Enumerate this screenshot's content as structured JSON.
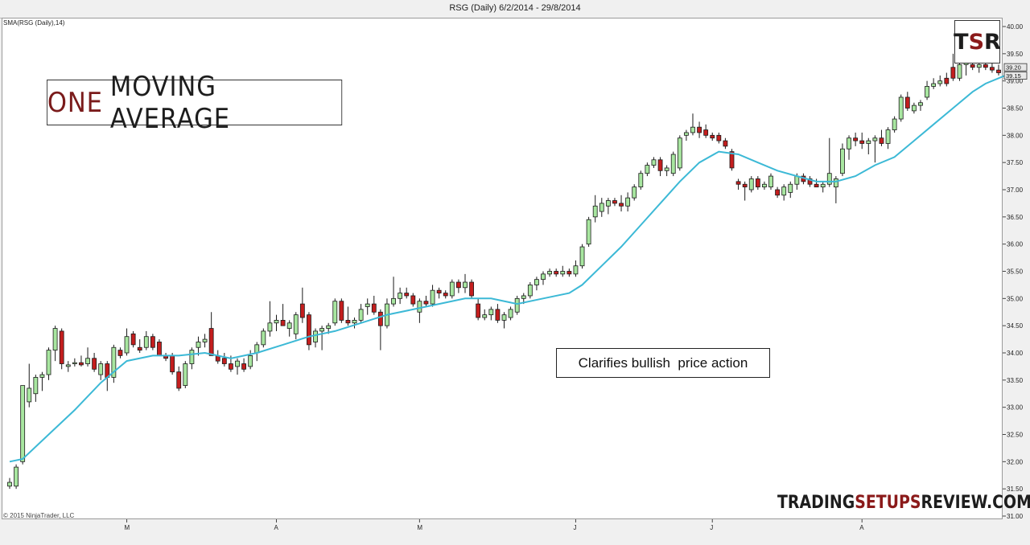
{
  "header": {
    "title": "RSG (Daily)  6/2/2014 - 29/8/2014"
  },
  "indicator_label": "SMA(RSG (Daily),14)",
  "copyright": "© 2015 NinjaTrader, LLC",
  "title_box": {
    "word1": "ONE",
    "word2": "MOVING AVERAGE"
  },
  "callout": "Clarifies bullish  price action",
  "logo": {
    "t": "T",
    "s": "S",
    "r": "R"
  },
  "watermark": {
    "part1": "TRADING",
    "part2": "SETUPS",
    "part3": "REVIEW.COM"
  },
  "colors": {
    "up": "#a8e6a0",
    "down": "#c41e1e",
    "sma": "#3cb9d6",
    "brand_red": "#8b1a1a"
  },
  "chart_data": {
    "type": "candlestick",
    "title": "RSG (Daily)  6/2/2014 - 29/8/2014",
    "ylim": [
      31.0,
      40.0
    ],
    "y_ticks": [
      "40.00",
      "39.50",
      "39.00",
      "38.50",
      "38.00",
      "37.50",
      "37.00",
      "36.50",
      "36.00",
      "35.50",
      "35.00",
      "34.50",
      "34.00",
      "33.50",
      "33.00",
      "32.50",
      "32.00",
      "31.50",
      "31.00"
    ],
    "x_month_labels": [
      {
        "label": "M",
        "index": 18
      },
      {
        "label": "A",
        "index": 41
      },
      {
        "label": "M",
        "index": 63
      },
      {
        "label": "J",
        "index": 87
      },
      {
        "label": "J",
        "index": 108
      },
      {
        "label": "A",
        "index": 131
      }
    ],
    "price_labels": [
      "39.20",
      "39.15"
    ],
    "candles": [
      {
        "o": 31.55,
        "h": 31.7,
        "l": 31.5,
        "c": 31.62
      },
      {
        "o": 31.55,
        "h": 31.95,
        "l": 31.5,
        "c": 31.9
      },
      {
        "o": 32.0,
        "h": 33.4,
        "l": 31.95,
        "c": 33.4
      },
      {
        "o": 33.1,
        "h": 33.8,
        "l": 33.0,
        "c": 33.35
      },
      {
        "o": 33.25,
        "h": 33.6,
        "l": 33.1,
        "c": 33.55
      },
      {
        "o": 33.55,
        "h": 33.65,
        "l": 33.3,
        "c": 33.6
      },
      {
        "o": 33.6,
        "h": 34.1,
        "l": 33.5,
        "c": 34.05
      },
      {
        "o": 34.05,
        "h": 34.5,
        "l": 33.85,
        "c": 34.45
      },
      {
        "o": 34.4,
        "h": 34.45,
        "l": 33.7,
        "c": 33.8
      },
      {
        "o": 33.75,
        "h": 33.85,
        "l": 33.65,
        "c": 33.78
      },
      {
        "o": 33.8,
        "h": 33.9,
        "l": 33.75,
        "c": 33.82
      },
      {
        "o": 33.82,
        "h": 33.95,
        "l": 33.75,
        "c": 33.78
      },
      {
        "o": 33.8,
        "h": 34.1,
        "l": 33.75,
        "c": 33.9
      },
      {
        "o": 33.9,
        "h": 34.0,
        "l": 33.65,
        "c": 33.7
      },
      {
        "o": 33.6,
        "h": 33.85,
        "l": 33.5,
        "c": 33.8
      },
      {
        "o": 33.8,
        "h": 33.85,
        "l": 33.3,
        "c": 33.55
      },
      {
        "o": 33.55,
        "h": 34.15,
        "l": 33.45,
        "c": 34.1
      },
      {
        "o": 34.05,
        "h": 34.1,
        "l": 33.9,
        "c": 33.95
      },
      {
        "o": 34.0,
        "h": 34.45,
        "l": 33.95,
        "c": 34.3
      },
      {
        "o": 34.35,
        "h": 34.4,
        "l": 34.1,
        "c": 34.15
      },
      {
        "o": 34.1,
        "h": 34.25,
        "l": 34.0,
        "c": 34.05
      },
      {
        "o": 34.1,
        "h": 34.4,
        "l": 34.05,
        "c": 34.3
      },
      {
        "o": 34.3,
        "h": 34.35,
        "l": 34.05,
        "c": 34.1
      },
      {
        "o": 34.2,
        "h": 34.25,
        "l": 34.0,
        "c": 33.95
      },
      {
        "o": 33.95,
        "h": 34.0,
        "l": 33.85,
        "c": 33.9
      },
      {
        "o": 33.95,
        "h": 34.0,
        "l": 33.6,
        "c": 33.65
      },
      {
        "o": 33.65,
        "h": 33.75,
        "l": 33.3,
        "c": 33.35
      },
      {
        "o": 33.4,
        "h": 33.85,
        "l": 33.35,
        "c": 33.8
      },
      {
        "o": 33.8,
        "h": 34.1,
        "l": 33.7,
        "c": 34.05
      },
      {
        "o": 34.1,
        "h": 34.3,
        "l": 33.95,
        "c": 34.2
      },
      {
        "o": 34.2,
        "h": 34.35,
        "l": 34.1,
        "c": 34.25
      },
      {
        "o": 34.45,
        "h": 34.75,
        "l": 33.95,
        "c": 33.95
      },
      {
        "o": 33.95,
        "h": 34.05,
        "l": 33.8,
        "c": 33.85
      },
      {
        "o": 33.9,
        "h": 34.0,
        "l": 33.75,
        "c": 33.8
      },
      {
        "o": 33.8,
        "h": 33.95,
        "l": 33.65,
        "c": 33.7
      },
      {
        "o": 33.75,
        "h": 33.9,
        "l": 33.6,
        "c": 33.85
      },
      {
        "o": 33.8,
        "h": 33.9,
        "l": 33.65,
        "c": 33.7
      },
      {
        "o": 33.75,
        "h": 34.05,
        "l": 33.7,
        "c": 33.95
      },
      {
        "o": 34.0,
        "h": 34.2,
        "l": 33.85,
        "c": 34.15
      },
      {
        "o": 34.15,
        "h": 34.45,
        "l": 34.1,
        "c": 34.4
      },
      {
        "o": 34.4,
        "h": 34.95,
        "l": 34.3,
        "c": 34.55
      },
      {
        "o": 34.55,
        "h": 34.7,
        "l": 34.4,
        "c": 34.6
      },
      {
        "o": 34.6,
        "h": 34.9,
        "l": 34.5,
        "c": 34.5
      },
      {
        "o": 34.45,
        "h": 34.6,
        "l": 34.3,
        "c": 34.55
      },
      {
        "o": 34.35,
        "h": 34.75,
        "l": 34.25,
        "c": 34.7
      },
      {
        "o": 34.9,
        "h": 35.2,
        "l": 34.55,
        "c": 34.65
      },
      {
        "o": 34.7,
        "h": 34.75,
        "l": 34.05,
        "c": 34.15
      },
      {
        "o": 34.2,
        "h": 34.45,
        "l": 34.1,
        "c": 34.4
      },
      {
        "o": 34.4,
        "h": 34.5,
        "l": 34.05,
        "c": 34.45
      },
      {
        "o": 34.45,
        "h": 34.55,
        "l": 34.35,
        "c": 34.5
      },
      {
        "o": 34.55,
        "h": 35.0,
        "l": 34.5,
        "c": 34.95
      },
      {
        "o": 34.95,
        "h": 35.0,
        "l": 34.55,
        "c": 34.6
      },
      {
        "o": 34.6,
        "h": 34.85,
        "l": 34.5,
        "c": 34.55
      },
      {
        "o": 34.55,
        "h": 34.65,
        "l": 34.45,
        "c": 34.6
      },
      {
        "o": 34.6,
        "h": 34.9,
        "l": 34.55,
        "c": 34.8
      },
      {
        "o": 34.85,
        "h": 35.0,
        "l": 34.7,
        "c": 34.9
      },
      {
        "o": 34.9,
        "h": 35.05,
        "l": 34.7,
        "c": 34.75
      },
      {
        "o": 34.75,
        "h": 34.8,
        "l": 34.05,
        "c": 34.5
      },
      {
        "o": 34.5,
        "h": 35.0,
        "l": 34.45,
        "c": 34.9
      },
      {
        "o": 34.9,
        "h": 35.4,
        "l": 34.85,
        "c": 35.0
      },
      {
        "o": 35.0,
        "h": 35.2,
        "l": 34.9,
        "c": 35.1
      },
      {
        "o": 35.1,
        "h": 35.2,
        "l": 35.0,
        "c": 35.05
      },
      {
        "o": 35.05,
        "h": 35.1,
        "l": 34.85,
        "c": 34.9
      },
      {
        "o": 34.75,
        "h": 35.0,
        "l": 34.55,
        "c": 34.95
      },
      {
        "o": 34.95,
        "h": 35.05,
        "l": 34.85,
        "c": 34.9
      },
      {
        "o": 34.9,
        "h": 35.25,
        "l": 34.85,
        "c": 35.15
      },
      {
        "o": 35.15,
        "h": 35.2,
        "l": 35.0,
        "c": 35.1
      },
      {
        "o": 35.1,
        "h": 35.15,
        "l": 35.0,
        "c": 35.05
      },
      {
        "o": 35.05,
        "h": 35.35,
        "l": 35.0,
        "c": 35.3
      },
      {
        "o": 35.3,
        "h": 35.35,
        "l": 35.1,
        "c": 35.2
      },
      {
        "o": 35.2,
        "h": 35.45,
        "l": 35.1,
        "c": 35.3
      },
      {
        "o": 35.3,
        "h": 35.35,
        "l": 35.0,
        "c": 35.05
      },
      {
        "o": 34.9,
        "h": 35.0,
        "l": 34.6,
        "c": 34.65
      },
      {
        "o": 34.65,
        "h": 34.8,
        "l": 34.6,
        "c": 34.7
      },
      {
        "o": 34.7,
        "h": 34.85,
        "l": 34.6,
        "c": 34.8
      },
      {
        "o": 34.8,
        "h": 34.9,
        "l": 34.55,
        "c": 34.6
      },
      {
        "o": 34.6,
        "h": 34.75,
        "l": 34.45,
        "c": 34.7
      },
      {
        "o": 34.65,
        "h": 34.85,
        "l": 34.6,
        "c": 34.8
      },
      {
        "o": 34.75,
        "h": 35.05,
        "l": 34.7,
        "c": 35.0
      },
      {
        "o": 35.0,
        "h": 35.1,
        "l": 34.9,
        "c": 35.05
      },
      {
        "o": 35.05,
        "h": 35.3,
        "l": 35.0,
        "c": 35.25
      },
      {
        "o": 35.25,
        "h": 35.4,
        "l": 35.15,
        "c": 35.35
      },
      {
        "o": 35.35,
        "h": 35.5,
        "l": 35.25,
        "c": 35.45
      },
      {
        "o": 35.45,
        "h": 35.55,
        "l": 35.4,
        "c": 35.5
      },
      {
        "o": 35.5,
        "h": 35.55,
        "l": 35.4,
        "c": 35.45
      },
      {
        "o": 35.45,
        "h": 35.6,
        "l": 35.4,
        "c": 35.5
      },
      {
        "o": 35.5,
        "h": 35.55,
        "l": 35.4,
        "c": 35.45
      },
      {
        "o": 35.45,
        "h": 35.7,
        "l": 35.4,
        "c": 35.6
      },
      {
        "o": 35.6,
        "h": 36.0,
        "l": 35.55,
        "c": 35.95
      },
      {
        "o": 36.0,
        "h": 36.5,
        "l": 35.95,
        "c": 36.45
      },
      {
        "o": 36.5,
        "h": 36.9,
        "l": 36.4,
        "c": 36.7
      },
      {
        "o": 36.6,
        "h": 36.85,
        "l": 36.5,
        "c": 36.75
      },
      {
        "o": 36.7,
        "h": 36.85,
        "l": 36.55,
        "c": 36.8
      },
      {
        "o": 36.8,
        "h": 36.85,
        "l": 36.7,
        "c": 36.75
      },
      {
        "o": 36.75,
        "h": 36.9,
        "l": 36.6,
        "c": 36.7
      },
      {
        "o": 36.7,
        "h": 36.95,
        "l": 36.6,
        "c": 36.85
      },
      {
        "o": 36.85,
        "h": 37.1,
        "l": 36.8,
        "c": 37.05
      },
      {
        "o": 37.05,
        "h": 37.35,
        "l": 37.0,
        "c": 37.3
      },
      {
        "o": 37.3,
        "h": 37.5,
        "l": 37.25,
        "c": 37.45
      },
      {
        "o": 37.45,
        "h": 37.6,
        "l": 37.4,
        "c": 37.55
      },
      {
        "o": 37.55,
        "h": 37.6,
        "l": 37.25,
        "c": 37.35
      },
      {
        "o": 37.35,
        "h": 37.45,
        "l": 37.25,
        "c": 37.4
      },
      {
        "o": 37.3,
        "h": 37.7,
        "l": 37.25,
        "c": 37.65
      },
      {
        "o": 37.4,
        "h": 38.0,
        "l": 37.35,
        "c": 37.95
      },
      {
        "o": 38.0,
        "h": 38.1,
        "l": 37.9,
        "c": 38.05
      },
      {
        "o": 38.05,
        "h": 38.4,
        "l": 38.0,
        "c": 38.15
      },
      {
        "o": 38.15,
        "h": 38.25,
        "l": 37.95,
        "c": 38.05
      },
      {
        "o": 38.1,
        "h": 38.2,
        "l": 37.95,
        "c": 38.0
      },
      {
        "o": 38.0,
        "h": 38.05,
        "l": 37.9,
        "c": 37.95
      },
      {
        "o": 38.0,
        "h": 38.05,
        "l": 37.85,
        "c": 37.9
      },
      {
        "o": 37.9,
        "h": 37.95,
        "l": 37.75,
        "c": 37.8
      },
      {
        "o": 37.7,
        "h": 37.75,
        "l": 37.35,
        "c": 37.4
      },
      {
        "o": 37.15,
        "h": 37.2,
        "l": 37.0,
        "c": 37.1
      },
      {
        "o": 37.1,
        "h": 37.15,
        "l": 36.8,
        "c": 37.05
      },
      {
        "o": 37.0,
        "h": 37.25,
        "l": 36.95,
        "c": 37.2
      },
      {
        "o": 37.2,
        "h": 37.25,
        "l": 37.0,
        "c": 37.05
      },
      {
        "o": 37.05,
        "h": 37.15,
        "l": 37.0,
        "c": 37.1
      },
      {
        "o": 37.05,
        "h": 37.3,
        "l": 37.0,
        "c": 37.25
      },
      {
        "o": 37.0,
        "h": 37.05,
        "l": 36.85,
        "c": 36.9
      },
      {
        "o": 36.9,
        "h": 37.1,
        "l": 36.8,
        "c": 37.05
      },
      {
        "o": 36.95,
        "h": 37.15,
        "l": 36.85,
        "c": 37.1
      },
      {
        "o": 37.1,
        "h": 37.3,
        "l": 37.0,
        "c": 37.25
      },
      {
        "o": 37.25,
        "h": 37.3,
        "l": 37.1,
        "c": 37.15
      },
      {
        "o": 37.2,
        "h": 37.25,
        "l": 37.05,
        "c": 37.1
      },
      {
        "o": 37.1,
        "h": 37.2,
        "l": 37.05,
        "c": 37.05
      },
      {
        "o": 37.05,
        "h": 37.15,
        "l": 36.95,
        "c": 37.1
      },
      {
        "o": 37.1,
        "h": 37.95,
        "l": 37.05,
        "c": 37.3
      },
      {
        "o": 37.05,
        "h": 37.25,
        "l": 36.75,
        "c": 37.2
      },
      {
        "o": 37.3,
        "h": 37.85,
        "l": 37.25,
        "c": 37.75
      },
      {
        "o": 37.75,
        "h": 38.0,
        "l": 37.55,
        "c": 37.95
      },
      {
        "o": 37.95,
        "h": 38.05,
        "l": 37.8,
        "c": 37.9
      },
      {
        "o": 37.9,
        "h": 38.05,
        "l": 37.75,
        "c": 37.85
      },
      {
        "o": 37.85,
        "h": 37.95,
        "l": 37.65,
        "c": 37.9
      },
      {
        "o": 37.9,
        "h": 38.0,
        "l": 37.5,
        "c": 37.95
      },
      {
        "o": 37.95,
        "h": 38.1,
        "l": 37.8,
        "c": 37.85
      },
      {
        "o": 37.85,
        "h": 38.15,
        "l": 37.75,
        "c": 38.1
      },
      {
        "o": 38.1,
        "h": 38.35,
        "l": 38.05,
        "c": 38.3
      },
      {
        "o": 38.3,
        "h": 38.75,
        "l": 38.25,
        "c": 38.7
      },
      {
        "o": 38.7,
        "h": 38.8,
        "l": 38.45,
        "c": 38.5
      },
      {
        "o": 38.45,
        "h": 38.6,
        "l": 38.4,
        "c": 38.55
      },
      {
        "o": 38.55,
        "h": 38.65,
        "l": 38.45,
        "c": 38.6
      },
      {
        "o": 38.7,
        "h": 39.0,
        "l": 38.65,
        "c": 38.9
      },
      {
        "o": 38.9,
        "h": 39.05,
        "l": 38.85,
        "c": 38.95
      },
      {
        "o": 38.95,
        "h": 39.1,
        "l": 38.9,
        "c": 39.0
      },
      {
        "o": 39.05,
        "h": 39.15,
        "l": 38.9,
        "c": 38.95
      },
      {
        "o": 39.25,
        "h": 39.5,
        "l": 39.0,
        "c": 39.05
      },
      {
        "o": 39.05,
        "h": 39.35,
        "l": 39.0,
        "c": 39.3
      },
      {
        "o": 39.3,
        "h": 39.4,
        "l": 39.1,
        "c": 39.35
      },
      {
        "o": 39.3,
        "h": 39.45,
        "l": 39.2,
        "c": 39.25
      },
      {
        "o": 39.25,
        "h": 39.35,
        "l": 39.15,
        "c": 39.3
      },
      {
        "o": 39.3,
        "h": 39.4,
        "l": 39.2,
        "c": 39.25
      },
      {
        "o": 39.25,
        "h": 39.35,
        "l": 39.15,
        "c": 39.2
      },
      {
        "o": 39.2,
        "h": 39.3,
        "l": 39.1,
        "c": 39.15
      }
    ],
    "sma": {
      "name": "SMA(RSG (Daily),14)",
      "period": 14,
      "points": [
        {
          "i": 0,
          "v": 32.0
        },
        {
          "i": 2,
          "v": 32.05
        },
        {
          "i": 6,
          "v": 32.5
        },
        {
          "i": 10,
          "v": 32.95
        },
        {
          "i": 14,
          "v": 33.45
        },
        {
          "i": 18,
          "v": 33.85
        },
        {
          "i": 22,
          "v": 33.95
        },
        {
          "i": 26,
          "v": 33.95
        },
        {
          "i": 30,
          "v": 34.0
        },
        {
          "i": 34,
          "v": 33.9
        },
        {
          "i": 38,
          "v": 34.0
        },
        {
          "i": 42,
          "v": 34.15
        },
        {
          "i": 46,
          "v": 34.3
        },
        {
          "i": 50,
          "v": 34.4
        },
        {
          "i": 54,
          "v": 34.55
        },
        {
          "i": 58,
          "v": 34.7
        },
        {
          "i": 62,
          "v": 34.8
        },
        {
          "i": 66,
          "v": 34.9
        },
        {
          "i": 70,
          "v": 35.0
        },
        {
          "i": 74,
          "v": 35.0
        },
        {
          "i": 78,
          "v": 34.9
        },
        {
          "i": 82,
          "v": 35.0
        },
        {
          "i": 86,
          "v": 35.1
        },
        {
          "i": 88,
          "v": 35.25
        },
        {
          "i": 91,
          "v": 35.6
        },
        {
          "i": 94,
          "v": 35.95
        },
        {
          "i": 97,
          "v": 36.35
        },
        {
          "i": 100,
          "v": 36.75
        },
        {
          "i": 103,
          "v": 37.15
        },
        {
          "i": 106,
          "v": 37.5
        },
        {
          "i": 109,
          "v": 37.7
        },
        {
          "i": 112,
          "v": 37.65
        },
        {
          "i": 115,
          "v": 37.5
        },
        {
          "i": 118,
          "v": 37.35
        },
        {
          "i": 121,
          "v": 37.25
        },
        {
          "i": 124,
          "v": 37.15
        },
        {
          "i": 127,
          "v": 37.15
        },
        {
          "i": 130,
          "v": 37.25
        },
        {
          "i": 133,
          "v": 37.45
        },
        {
          "i": 136,
          "v": 37.6
        },
        {
          "i": 139,
          "v": 37.9
        },
        {
          "i": 142,
          "v": 38.2
        },
        {
          "i": 145,
          "v": 38.5
        },
        {
          "i": 148,
          "v": 38.8
        },
        {
          "i": 150,
          "v": 38.95
        },
        {
          "i": 152,
          "v": 39.05
        },
        {
          "i": 154,
          "v": 39.15
        }
      ]
    }
  }
}
